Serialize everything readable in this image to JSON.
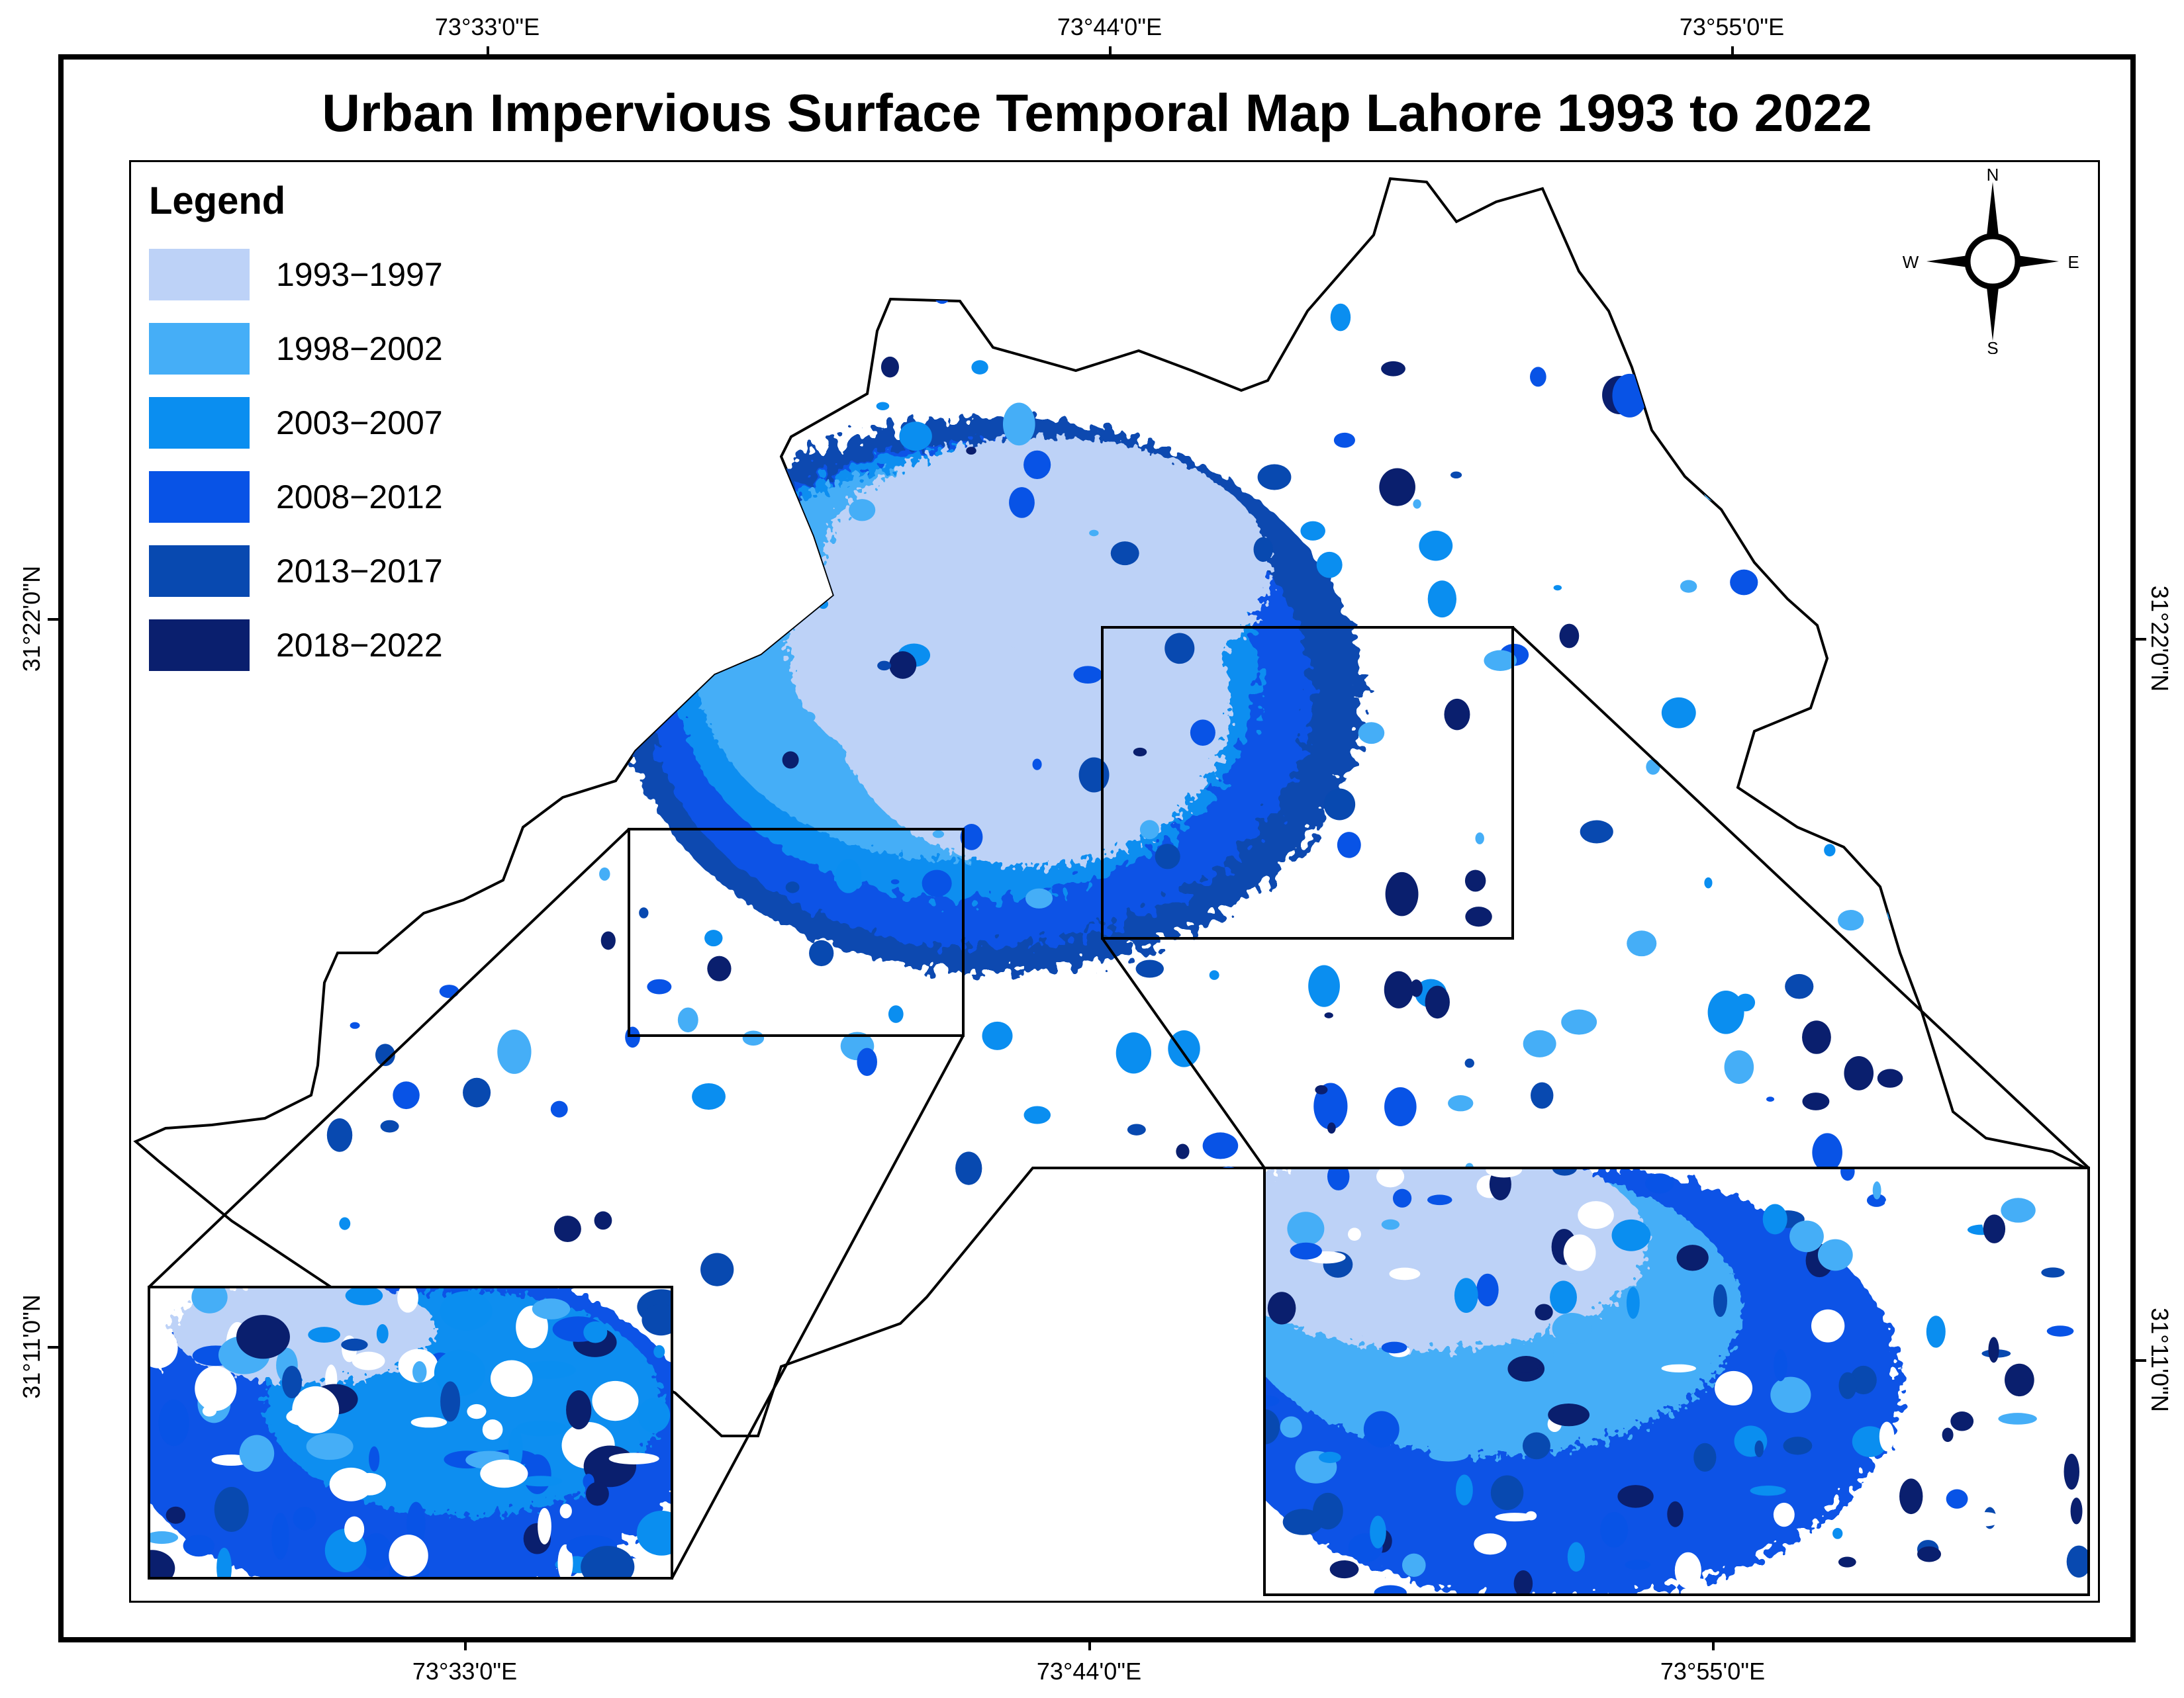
{
  "map": {
    "title": "Urban Impervious Surface Temporal Map Lahore 1993 to 2022",
    "graticule": {
      "longitudes": [
        "73°33'0\"E",
        "73°44'0\"E",
        "73°55'0\"E"
      ],
      "latitudes": [
        "31°22'0\"N",
        "31°11'0\"N"
      ]
    },
    "legend": {
      "title": "Legend",
      "items": [
        {
          "label": "1993−1997",
          "color": "#bdd2f7"
        },
        {
          "label": "1998−2002",
          "color": "#45aef7"
        },
        {
          "label": "2003−2007",
          "color": "#0a8ef0"
        },
        {
          "label": "2008−2012",
          "color": "#0853e6"
        },
        {
          "label": "2013−2017",
          "color": "#0849b0"
        },
        {
          "label": "2018−2022",
          "color": "#0a1f6e"
        }
      ]
    },
    "north_arrow": {
      "n": "N",
      "s": "S",
      "e": "E",
      "w": "W"
    },
    "insets": [
      "inset-west",
      "inset-central"
    ]
  }
}
